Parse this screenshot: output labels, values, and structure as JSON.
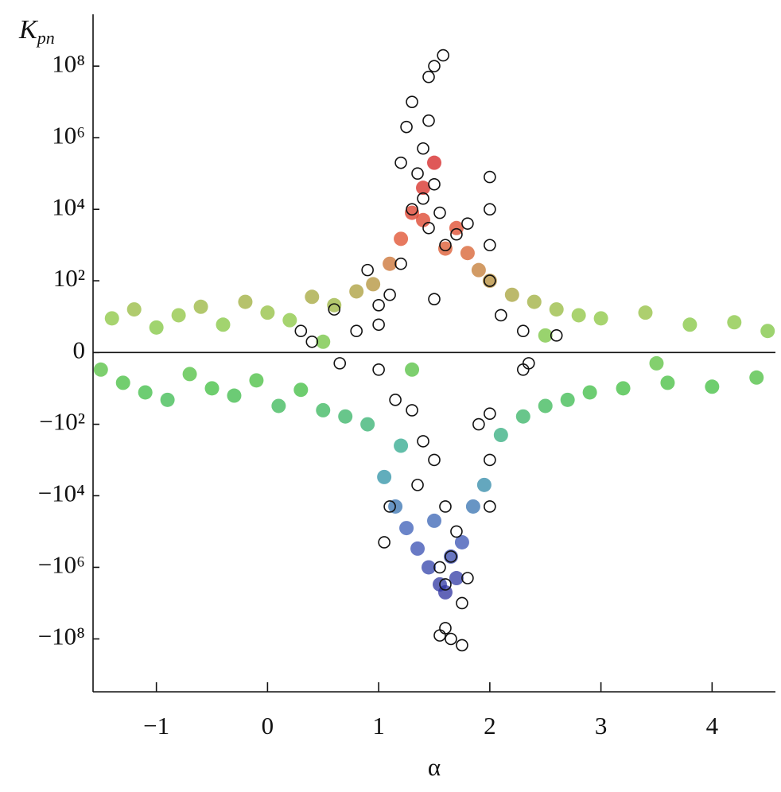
{
  "chart_data": {
    "type": "scatter",
    "xlabel": "α",
    "ylabel": "K",
    "ylabel_sub": "pn",
    "yscale": "symlog",
    "zero_line": true,
    "xlim": [
      -1.57,
      4.57
    ],
    "ylim": [
      -3000000000,
      2800000000
    ],
    "xticks": [
      {
        "value": -1,
        "label": "−1"
      },
      0,
      1,
      2,
      3,
      4
    ],
    "yticks": [
      {
        "value": -100000000,
        "label": "−10⁸"
      },
      {
        "value": -1000000,
        "label": "−10⁶"
      },
      {
        "value": -10000,
        "label": "−10⁴"
      },
      {
        "value": -100,
        "label": "−10²"
      },
      0,
      {
        "value": 100,
        "label": "10²"
      },
      {
        "value": 10000,
        "label": "10⁴"
      },
      {
        "value": 1000000,
        "label": "10⁶"
      },
      {
        "value": 100000000,
        "label": "10⁸"
      }
    ],
    "series": [
      {
        "name": "cloud",
        "marker": "dot",
        "colormap": [
          "#2a2a9a",
          "#3b58b8",
          "#2aa3a0",
          "#3dbd3d",
          "#8cc63f",
          "#e0502a",
          "#d42020"
        ],
        "x": [
          -1.4,
          -1.3,
          -1.2,
          -1.1,
          -1.0,
          -0.9,
          -0.8,
          -0.7,
          -0.6,
          -0.5,
          -0.4,
          -0.3,
          -0.2,
          -0.1,
          0,
          0.1,
          0.2,
          0.3,
          0.4,
          0.5,
          0.6,
          0.7,
          0.8,
          0.9,
          0.95,
          1.05,
          1.1,
          1.15,
          1.2,
          1.25,
          1.3,
          1.35,
          1.4,
          1.45,
          1.5,
          1.55,
          1.6,
          1.65,
          1.7,
          1.75,
          1.8,
          1.85,
          1.9,
          1.95,
          2.0,
          2.1,
          2.2,
          2.3,
          2.4,
          2.5,
          2.6,
          2.7,
          2.8,
          2.9,
          3.0,
          3.2,
          3.4,
          3.6,
          3.8,
          4.0,
          4.2,
          4.4,
          4.5,
          1.3,
          2.5,
          -1.5,
          0.5,
          3.5,
          1.2,
          1.7,
          1.6,
          1.4,
          1.5
        ],
        "values": [
          8,
          -6,
          15,
          -12,
          4,
          -20,
          10,
          -3,
          18,
          -9,
          5,
          -15,
          25,
          -5,
          12,
          -30,
          7,
          -10,
          35,
          -40,
          20,
          -60,
          50,
          -100,
          80,
          -3000,
          300,
          -20000,
          1500,
          -80000,
          8000,
          -300000,
          40000,
          -1000000,
          200000,
          -3000000,
          800,
          -500000,
          3000,
          -200000,
          600,
          -20000,
          200,
          -5000,
          100,
          -200,
          40,
          -60,
          25,
          -30,
          15,
          -20,
          10,
          -12,
          8,
          -9,
          12,
          -6,
          5,
          -8,
          6,
          -4,
          3,
          -2,
          2,
          -2,
          1,
          -1,
          -400,
          -2000000,
          -5000000,
          5000,
          -50000
        ]
      },
      {
        "name": "circles",
        "marker": "circle",
        "color": "#111111",
        "x": [
          1.58,
          1.5,
          1.45,
          1.3,
          1.45,
          1.25,
          1.4,
          1.2,
          1.35,
          1.5,
          1.4,
          1.3,
          1.55,
          1.45,
          1.6,
          1.7,
          1.8,
          2.0,
          2.0,
          2.0,
          2.0,
          1.0,
          1.0,
          1.0,
          0.3,
          0.4,
          0.8,
          0.6,
          0.9,
          1.1,
          1.5,
          1.2,
          2.1,
          2.3,
          2.6,
          2.35,
          0.65,
          1.15,
          1.3,
          1.4,
          1.5,
          1.35,
          1.6,
          1.7,
          1.65,
          1.55,
          1.6,
          1.75,
          1.6,
          1.65,
          1.75,
          1.55,
          1.8,
          1.05,
          1.1,
          2.0,
          2.0,
          2.0,
          1.9,
          2.3
        ],
        "values": [
          200000000,
          100000000,
          50000000,
          10000000,
          3000000,
          2000000,
          500000,
          200000,
          100000,
          50000,
          20000,
          10000,
          8000,
          3000,
          1000,
          2000,
          4000,
          80000,
          10000,
          1000,
          100,
          20,
          5,
          -2,
          3,
          1,
          3,
          15,
          200,
          40,
          30,
          300,
          10,
          3,
          2,
          -1,
          -1,
          -20,
          -40,
          -300,
          -1000,
          -5000,
          -20000,
          -100000,
          -500000,
          -1000000,
          -3000000,
          -10000000,
          -50000000,
          -100000000,
          -150000000,
          -80000000,
          -2000000,
          -200000,
          -20000,
          -50,
          -1000,
          -20000,
          -100,
          -2
        ]
      }
    ]
  }
}
